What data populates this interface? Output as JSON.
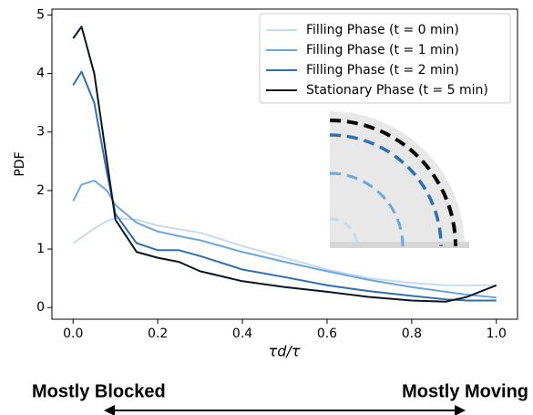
{
  "chart_data": {
    "type": "line",
    "x_label": "τd/τ",
    "y_label": "PDF",
    "x": [
      0,
      0.02,
      0.05,
      0.08,
      0.1,
      0.15,
      0.2,
      0.25,
      0.3,
      0.4,
      0.5,
      0.6,
      0.7,
      0.8,
      0.88,
      0.93,
      1.0
    ],
    "series": [
      {
        "name": "Filling Phase (t = 0 min)",
        "color": "#c6dbef",
        "values": [
          1.1,
          1.2,
          1.35,
          1.48,
          1.53,
          1.5,
          1.4,
          1.34,
          1.28,
          1.05,
          0.85,
          0.65,
          0.5,
          0.42,
          0.38,
          0.38,
          0.38
        ]
      },
      {
        "name": "Filling Phase (t = 1 min)",
        "color": "#6fa7d6",
        "values": [
          1.82,
          2.1,
          2.17,
          2.0,
          1.75,
          1.45,
          1.3,
          1.22,
          1.15,
          0.95,
          0.78,
          0.62,
          0.47,
          0.35,
          0.27,
          0.22,
          0.17
        ]
      },
      {
        "name": "Filling Phase (t = 2 min)",
        "color": "#2f6fae",
        "values": [
          3.8,
          4.03,
          3.5,
          2.3,
          1.6,
          1.1,
          0.98,
          0.98,
          0.88,
          0.65,
          0.52,
          0.38,
          0.28,
          0.2,
          0.14,
          0.12,
          0.12
        ]
      },
      {
        "name": "Stationary Phase (t = 5 min)",
        "color": "#0b1520",
        "values": [
          4.6,
          4.8,
          4.0,
          2.5,
          1.5,
          0.95,
          0.85,
          0.78,
          0.62,
          0.45,
          0.35,
          0.27,
          0.18,
          0.12,
          0.1,
          0.18,
          0.38
        ]
      }
    ],
    "xlim": [
      -0.05,
      1.05
    ],
    "ylim": [
      -0.2,
      5.1
    ],
    "xticks": [
      {
        "value": 0,
        "label": "0.0"
      },
      0.2,
      0.4,
      0.6,
      0.8,
      {
        "value": 1,
        "label": "1.0"
      }
    ],
    "yticks": [
      0,
      1,
      2,
      3,
      4,
      5
    ],
    "grid": false,
    "legend": "upper right",
    "annotations": [
      "Mostly Blocked",
      "Mostly Moving"
    ]
  }
}
